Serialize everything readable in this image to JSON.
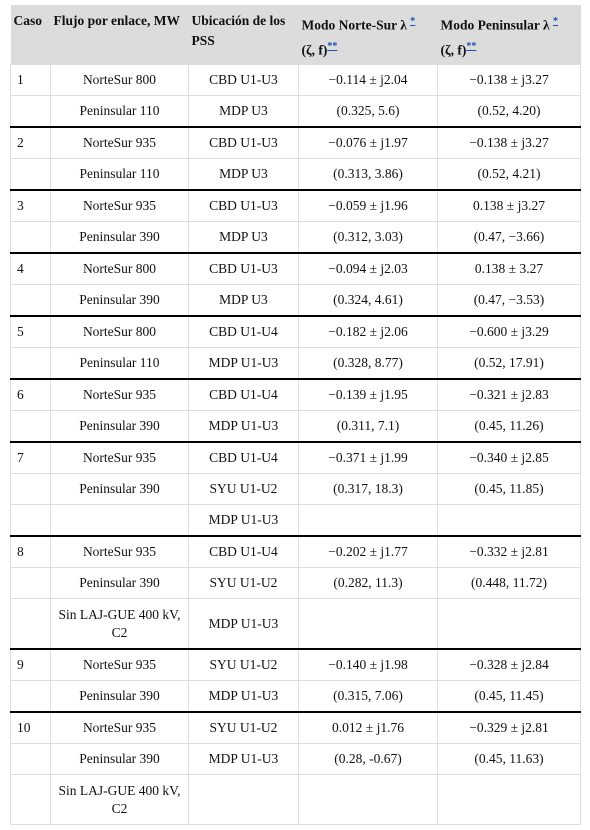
{
  "table": {
    "header": [
      {
        "text": "Caso"
      },
      {
        "text": "Flujo por enlace, MW"
      },
      {
        "text": "Ubicación de los PSS"
      },
      {
        "text": "Modo Norte-Sur λ",
        "sup1": "*",
        "line2": "(ζ, f)",
        "sup2": "**"
      },
      {
        "text": "Modo Peninsular λ",
        "sup1": "*",
        "line2": "(ζ, f)",
        "sup2": "**"
      }
    ],
    "groups": [
      {
        "caso": "1",
        "rows": [
          [
            "NorteSur 800",
            "CBD U1-U3",
            "−0.114 ± j2.04",
            "−0.138 ± j3.27"
          ],
          [
            "Peninsular 110",
            "MDP U3",
            "(0.325, 5.6)",
            "(0.52, 4.20)"
          ]
        ]
      },
      {
        "caso": "2",
        "rows": [
          [
            "NorteSur 935",
            "CBD U1-U3",
            "−0.076 ± j1.97",
            "−0.138 ± j3.27"
          ],
          [
            "Peninsular 110",
            "MDP U3",
            "(0.313, 3.86)",
            "(0.52, 4.21)"
          ]
        ]
      },
      {
        "caso": "3",
        "rows": [
          [
            "NorteSur 935",
            "CBD U1-U3",
            "−0.059 ± j1.96",
            "0.138 ± j3.27"
          ],
          [
            "Peninsular 390",
            "MDP U3",
            "(0.312, 3.03)",
            "(0.47, −3.66)"
          ]
        ]
      },
      {
        "caso": "4",
        "rows": [
          [
            "NorteSur 800",
            "CBD U1-U3",
            "−0.094 ± j2.03",
            "0.138 ± 3.27"
          ],
          [
            "Peninsular 390",
            "MDP U3",
            "(0.324, 4.61)",
            "(0.47, −3.53)"
          ]
        ]
      },
      {
        "caso": "5",
        "rows": [
          [
            "NorteSur 800",
            "CBD U1-U4",
            "−0.182 ± j2.06",
            "−0.600 ± j3.29"
          ],
          [
            "Peninsular 110",
            "MDP U1-U3",
            "(0.328, 8.77)",
            "(0.52, 17.91)"
          ]
        ]
      },
      {
        "caso": "6",
        "rows": [
          [
            "NorteSur 935",
            "CBD U1-U4",
            "−0.139 ± j1.95",
            "−0.321 ± j2.83"
          ],
          [
            "Peninsular 390",
            "MDP U1-U3",
            "(0.311, 7.1)",
            "(0.45, 11.26)"
          ]
        ]
      },
      {
        "caso": "7",
        "rows": [
          [
            "NorteSur 935",
            "CBD U1-U4",
            "−0.371 ± j1.99",
            "−0.340 ± j2.85"
          ],
          [
            "Peninsular 390",
            "SYU U1-U2",
            "(0.317, 18.3)",
            "(0.45, 11.85)"
          ],
          [
            null,
            "MDP U1-U3",
            null,
            null
          ]
        ]
      },
      {
        "caso": "8",
        "rows": [
          [
            "NorteSur 935",
            "CBD U1-U4",
            "−0.202 ± j1.77",
            "−0.332 ± j2.81"
          ],
          [
            "Peninsular 390",
            "SYU U1-U2",
            "(0.282, 11.3)",
            "(0.448, 11.72)"
          ],
          [
            "Sin LAJ-GUE 400 kV, C2",
            "MDP U1-U3",
            null,
            null
          ]
        ]
      },
      {
        "caso": "9",
        "rows": [
          [
            "NorteSur 935",
            "SYU U1-U2",
            "−0.140 ± j1.98",
            "−0.328 ± j2.84"
          ],
          [
            "Peninsular 390",
            "MDP U1-U3",
            "(0.315, 7.06)",
            "(0.45, 11.45)"
          ]
        ]
      },
      {
        "caso": "10",
        "rows": [
          [
            "NorteSur 935",
            "SYU U1-U2",
            "0.012 ± j1.76",
            "−0.329 ± j2.81"
          ],
          [
            "Peninsular 390",
            "MDP U1-U3",
            "(0.28, -0.67)",
            "(0.45, 11.63)"
          ],
          [
            "Sin LAJ-GUE 400 kV, C2",
            null,
            null,
            null
          ]
        ]
      }
    ]
  }
}
